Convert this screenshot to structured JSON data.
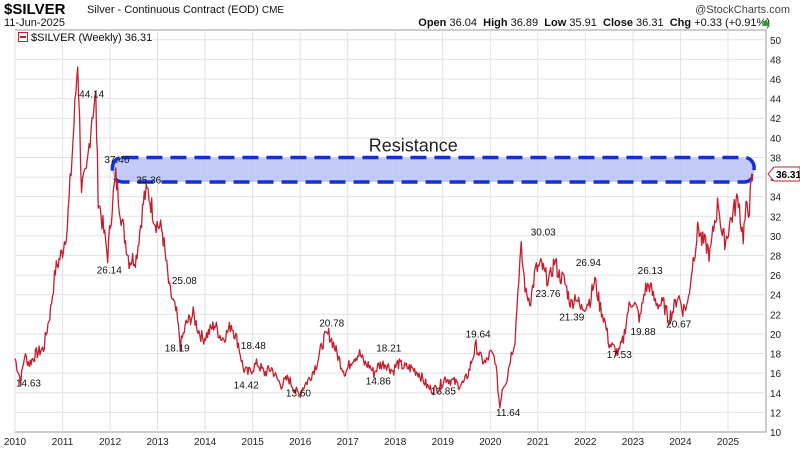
{
  "header": {
    "symbol": "$SILVER",
    "description": "Silver - Continuous Contract (EOD)",
    "exchange": "CME",
    "date": "11-Jun-2025",
    "watermark": "@StockCharts.com",
    "open_label": "Open",
    "open": "36.04",
    "high_label": "High",
    "high": "36.89",
    "low_label": "Low",
    "low": "35.91",
    "close_label": "Close",
    "close": "36.31",
    "chg_label": "Chg",
    "chg": "+0.33 (+0.91%)",
    "up_color": "#2e9e2e"
  },
  "legend": {
    "label": "$SILVER (Weekly) 36.31"
  },
  "chart_data": {
    "type": "line",
    "title": "Silver - Continuous Contract (EOD)",
    "series_name": "$SILVER (Weekly)",
    "line_color": "#c41f2e",
    "last_value": 36.31,
    "last_label": "36.31",
    "x_range": [
      2010.0,
      2025.8
    ],
    "ylim": [
      10,
      51
    ],
    "y_ticks": [
      10,
      12,
      14,
      16,
      18,
      20,
      22,
      24,
      26,
      28,
      30,
      32,
      34,
      36,
      38,
      40,
      42,
      44,
      46,
      48,
      50
    ],
    "x_ticks": [
      2010,
      2011,
      2012,
      2013,
      2014,
      2015,
      2016,
      2017,
      2018,
      2019,
      2020,
      2021,
      2022,
      2023,
      2024,
      2025
    ],
    "grid": true,
    "anchors": [
      [
        2010.0,
        17.5
      ],
      [
        2010.12,
        15.2
      ],
      [
        2010.2,
        17.8
      ],
      [
        2010.3,
        17.0
      ],
      [
        2010.45,
        18.0
      ],
      [
        2010.6,
        18.5
      ],
      [
        2010.75,
        22.5
      ],
      [
        2010.85,
        26.5
      ],
      [
        2011.0,
        28.5
      ],
      [
        2011.1,
        31.0
      ],
      [
        2011.2,
        38.0
      ],
      [
        2011.32,
        48.0
      ],
      [
        2011.4,
        35.0
      ],
      [
        2011.5,
        36.0
      ],
      [
        2011.62,
        42.5
      ],
      [
        2011.7,
        44.0
      ],
      [
        2011.75,
        34.0
      ],
      [
        2011.85,
        31.0
      ],
      [
        2011.95,
        28.0
      ],
      [
        2012.05,
        33.5
      ],
      [
        2012.12,
        36.0
      ],
      [
        2012.25,
        31.5
      ],
      [
        2012.4,
        27.5
      ],
      [
        2012.55,
        27.8
      ],
      [
        2012.72,
        34.0
      ],
      [
        2012.8,
        34.5
      ],
      [
        2012.95,
        31.5
      ],
      [
        2013.1,
        30.5
      ],
      [
        2013.25,
        24.5
      ],
      [
        2013.4,
        22.0
      ],
      [
        2013.48,
        18.8
      ],
      [
        2013.6,
        21.0
      ],
      [
        2013.75,
        22.0
      ],
      [
        2013.85,
        20.5
      ],
      [
        2013.95,
        19.5
      ],
      [
        2014.05,
        20.0
      ],
      [
        2014.2,
        21.0
      ],
      [
        2014.35,
        19.5
      ],
      [
        2014.45,
        20.0
      ],
      [
        2014.55,
        21.0
      ],
      [
        2014.7,
        19.0
      ],
      [
        2014.8,
        16.5
      ],
      [
        2014.9,
        16.0
      ],
      [
        2015.0,
        16.5
      ],
      [
        2015.1,
        17.0
      ],
      [
        2015.25,
        16.0
      ],
      [
        2015.4,
        16.5
      ],
      [
        2015.5,
        15.5
      ],
      [
        2015.6,
        14.8
      ],
      [
        2015.75,
        15.5
      ],
      [
        2015.9,
        14.2
      ],
      [
        2015.98,
        13.8
      ],
      [
        2016.05,
        14.5
      ],
      [
        2016.2,
        15.5
      ],
      [
        2016.35,
        17.0
      ],
      [
        2016.5,
        19.5
      ],
      [
        2016.6,
        20.0
      ],
      [
        2016.7,
        19.0
      ],
      [
        2016.85,
        17.0
      ],
      [
        2016.95,
        16.0
      ],
      [
        2017.1,
        17.5
      ],
      [
        2017.25,
        18.0
      ],
      [
        2017.35,
        17.0
      ],
      [
        2017.45,
        16.8
      ],
      [
        2017.55,
        16.0
      ],
      [
        2017.65,
        16.8
      ],
      [
        2017.8,
        17.0
      ],
      [
        2017.95,
        16.2
      ],
      [
        2018.05,
        17.0
      ],
      [
        2018.2,
        16.6
      ],
      [
        2018.35,
        16.5
      ],
      [
        2018.5,
        16.0
      ],
      [
        2018.6,
        15.2
      ],
      [
        2018.7,
        14.5
      ],
      [
        2018.8,
        14.3
      ],
      [
        2018.92,
        14.6
      ],
      [
        2019.05,
        15.5
      ],
      [
        2019.2,
        15.2
      ],
      [
        2019.35,
        14.8
      ],
      [
        2019.45,
        15.0
      ],
      [
        2019.55,
        16.2
      ],
      [
        2019.62,
        17.5
      ],
      [
        2019.7,
        18.8
      ],
      [
        2019.8,
        17.5
      ],
      [
        2019.9,
        17.0
      ],
      [
        2020.0,
        18.0
      ],
      [
        2020.1,
        17.5
      ],
      [
        2020.2,
        12.5
      ],
      [
        2020.25,
        14.5
      ],
      [
        2020.35,
        15.5
      ],
      [
        2020.42,
        17.5
      ],
      [
        2020.52,
        19.5
      ],
      [
        2020.6,
        26.0
      ],
      [
        2020.65,
        28.5
      ],
      [
        2020.75,
        24.0
      ],
      [
        2020.85,
        23.5
      ],
      [
        2020.95,
        26.5
      ],
      [
        2021.08,
        27.0
      ],
      [
        2021.15,
        26.0
      ],
      [
        2021.25,
        25.5
      ],
      [
        2021.35,
        27.5
      ],
      [
        2021.45,
        26.0
      ],
      [
        2021.55,
        25.5
      ],
      [
        2021.7,
        23.0
      ],
      [
        2021.8,
        24.0
      ],
      [
        2021.9,
        22.5
      ],
      [
        2022.0,
        23.0
      ],
      [
        2022.1,
        23.5
      ],
      [
        2022.2,
        25.5
      ],
      [
        2022.3,
        23.0
      ],
      [
        2022.4,
        21.5
      ],
      [
        2022.5,
        19.0
      ],
      [
        2022.6,
        18.5
      ],
      [
        2022.7,
        18.0
      ],
      [
        2022.8,
        19.5
      ],
      [
        2022.9,
        22.5
      ],
      [
        2023.0,
        23.5
      ],
      [
        2023.15,
        21.5
      ],
      [
        2023.25,
        24.5
      ],
      [
        2023.35,
        25.0
      ],
      [
        2023.45,
        23.5
      ],
      [
        2023.55,
        23.0
      ],
      [
        2023.65,
        23.0
      ],
      [
        2023.75,
        21.5
      ],
      [
        2023.85,
        22.5
      ],
      [
        2023.95,
        24.0
      ],
      [
        2024.05,
        22.5
      ],
      [
        2024.15,
        23.0
      ],
      [
        2024.25,
        27.0
      ],
      [
        2024.38,
        31.0
      ],
      [
        2024.45,
        29.5
      ],
      [
        2024.55,
        29.0
      ],
      [
        2024.62,
        28.0
      ],
      [
        2024.72,
        31.5
      ],
      [
        2024.8,
        33.5
      ],
      [
        2024.88,
        30.0
      ],
      [
        2024.95,
        29.5
      ],
      [
        2025.05,
        31.5
      ],
      [
        2025.15,
        33.0
      ],
      [
        2025.22,
        34.0
      ],
      [
        2025.28,
        31.0
      ],
      [
        2025.32,
        30.0
      ],
      [
        2025.38,
        32.5
      ],
      [
        2025.45,
        33.0
      ],
      [
        2025.5,
        35.5
      ],
      [
        2025.52,
        36.31
      ]
    ],
    "resistance": {
      "label": "Resistance",
      "y_low": 35.5,
      "y_high": 38.0,
      "x_start": 2012.05,
      "x_end": 2025.55,
      "fill": "#b8c2f5",
      "stroke": "#1230d9"
    },
    "annotations": [
      {
        "x": 2010.02,
        "y": 14.63,
        "label": "14.63"
      },
      {
        "x": 2011.35,
        "y": 44.14,
        "label": "44.14"
      },
      {
        "x": 2011.72,
        "y": 26.14,
        "label": "26.14"
      },
      {
        "x": 2011.88,
        "y": 37.46,
        "label": "37.46"
      },
      {
        "x": 2012.55,
        "y": 35.36,
        "label": "35.36"
      },
      {
        "x": 2013.3,
        "y": 25.08,
        "label": "25.08"
      },
      {
        "x": 2013.15,
        "y": 18.19,
        "label": "18.19"
      },
      {
        "x": 2014.75,
        "y": 18.48,
        "label": "18.48"
      },
      {
        "x": 2014.6,
        "y": 14.42,
        "label": "14.42"
      },
      {
        "x": 2015.7,
        "y": 13.6,
        "label": "13.60"
      },
      {
        "x": 2016.4,
        "y": 20.78,
        "label": "20.78"
      },
      {
        "x": 2017.38,
        "y": 14.86,
        "label": "14.86"
      },
      {
        "x": 2017.6,
        "y": 18.21,
        "label": "18.21"
      },
      {
        "x": 2018.75,
        "y": 13.85,
        "label": "13.85"
      },
      {
        "x": 2019.48,
        "y": 19.64,
        "label": "19.64"
      },
      {
        "x": 2020.12,
        "y": 11.64,
        "label": "11.64"
      },
      {
        "x": 2020.85,
        "y": 30.03,
        "label": "30.03"
      },
      {
        "x": 2020.95,
        "y": 23.76,
        "label": "23.76"
      },
      {
        "x": 2021.8,
        "y": 26.94,
        "label": "26.94"
      },
      {
        "x": 2021.45,
        "y": 21.39,
        "label": "21.39"
      },
      {
        "x": 2022.45,
        "y": 17.53,
        "label": "17.53"
      },
      {
        "x": 2022.95,
        "y": 19.88,
        "label": "19.88"
      },
      {
        "x": 2023.1,
        "y": 26.13,
        "label": "26.13"
      },
      {
        "x": 2023.7,
        "y": 20.67,
        "label": "20.67"
      }
    ]
  }
}
